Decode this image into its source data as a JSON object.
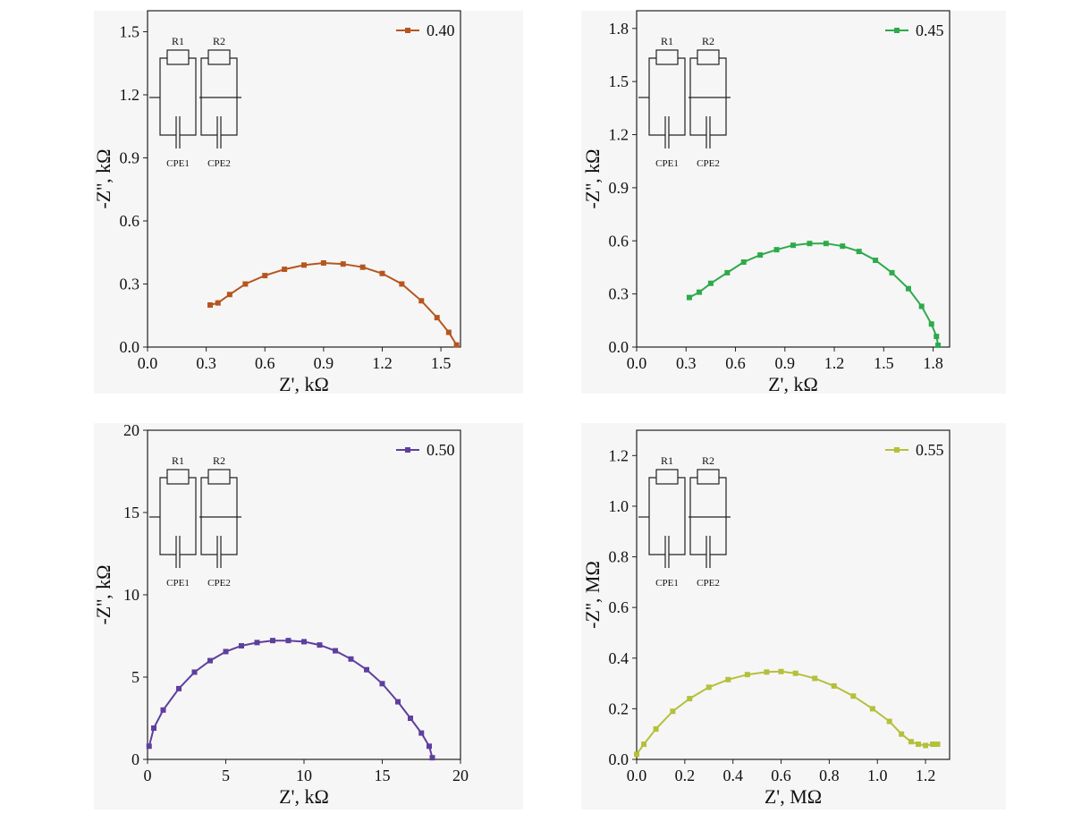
{
  "chart_data": [
    {
      "type": "scatter",
      "xlabel": "Z', kΩ",
      "ylabel": "-Z'', kΩ",
      "xlim": [
        0,
        1.6
      ],
      "ylim": [
        0,
        1.6
      ],
      "xticks": [
        "0.0",
        "0.3",
        "0.6",
        "0.9",
        "1.2",
        "1.5"
      ],
      "yticks": [
        "0.0",
        "0.3",
        "0.6",
        "0.9",
        "1.2",
        "1.5"
      ],
      "legend": "top-right",
      "circuit_labels": {
        "r1": "R1",
        "r2": "R2",
        "cpe1": "CPE1",
        "cpe2": "CPE2"
      },
      "series": [
        {
          "name": "0.40",
          "color": "#b5561f",
          "x": [
            0.32,
            0.36,
            0.42,
            0.5,
            0.6,
            0.7,
            0.8,
            0.9,
            1.0,
            1.1,
            1.2,
            1.3,
            1.4,
            1.48,
            1.54,
            1.58
          ],
          "y": [
            0.2,
            0.21,
            0.25,
            0.3,
            0.34,
            0.37,
            0.39,
            0.4,
            0.395,
            0.38,
            0.35,
            0.3,
            0.22,
            0.14,
            0.07,
            0.01
          ]
        }
      ]
    },
    {
      "type": "scatter",
      "xlabel": "Z', kΩ",
      "ylabel": "-Z'', kΩ",
      "xlim": [
        0,
        1.9
      ],
      "ylim": [
        0,
        1.9
      ],
      "xticks": [
        "0.0",
        "0.3",
        "0.6",
        "0.9",
        "1.2",
        "1.5",
        "1.8"
      ],
      "yticks": [
        "0.0",
        "0.3",
        "0.6",
        "0.9",
        "1.2",
        "1.5",
        "1.8"
      ],
      "legend": "top-right",
      "circuit_labels": {
        "r1": "R1",
        "r2": "R2",
        "cpe1": "CPE1",
        "cpe2": "CPE2"
      },
      "series": [
        {
          "name": "0.45",
          "color": "#2eaa4a",
          "x": [
            0.32,
            0.38,
            0.45,
            0.55,
            0.65,
            0.75,
            0.85,
            0.95,
            1.05,
            1.15,
            1.25,
            1.35,
            1.45,
            1.55,
            1.65,
            1.73,
            1.79,
            1.82,
            1.83
          ],
          "y": [
            0.28,
            0.31,
            0.36,
            0.42,
            0.48,
            0.52,
            0.55,
            0.575,
            0.585,
            0.585,
            0.57,
            0.54,
            0.49,
            0.42,
            0.33,
            0.23,
            0.13,
            0.06,
            0.01
          ]
        }
      ]
    },
    {
      "type": "scatter",
      "xlabel": "Z', kΩ",
      "ylabel": "-Z'', kΩ",
      "xlim": [
        0,
        20
      ],
      "ylim": [
        0,
        20
      ],
      "xticks": [
        "0",
        "5",
        "10",
        "15",
        "20"
      ],
      "yticks": [
        "0",
        "5",
        "10",
        "15",
        "20"
      ],
      "legend": "top-right",
      "circuit_labels": {
        "r1": "R1",
        "r2": "R2",
        "cpe1": "CPE1",
        "cpe2": "CPE2"
      },
      "series": [
        {
          "name": "0.50",
          "color": "#5e3f9e",
          "x": [
            0.1,
            0.4,
            1.0,
            2.0,
            3.0,
            4.0,
            5.0,
            6.0,
            7.0,
            8.0,
            9.0,
            10.0,
            11.0,
            12.0,
            13.0,
            14.0,
            15.0,
            16.0,
            16.8,
            17.5,
            18.0,
            18.2
          ],
          "y": [
            0.8,
            1.9,
            3.0,
            4.3,
            5.3,
            6.0,
            6.55,
            6.9,
            7.1,
            7.22,
            7.22,
            7.15,
            6.95,
            6.6,
            6.1,
            5.45,
            4.6,
            3.5,
            2.5,
            1.6,
            0.8,
            0.1
          ]
        }
      ]
    },
    {
      "type": "scatter",
      "xlabel": "Z', MΩ",
      "ylabel": "-Z'', MΩ",
      "xlim": [
        0,
        1.3
      ],
      "ylim": [
        0,
        1.3
      ],
      "xticks": [
        "0.0",
        "0.2",
        "0.4",
        "0.6",
        "0.8",
        "1.0",
        "1.2"
      ],
      "yticks": [
        "0.0",
        "0.2",
        "0.4",
        "0.6",
        "0.8",
        "1.0",
        "1.2"
      ],
      "legend": "top-right",
      "circuit_labels": {
        "r1": "R1",
        "r2": "R2",
        "cpe1": "CPE1",
        "cpe2": "CPE2"
      },
      "series": [
        {
          "name": "0.55",
          "color": "#b5c03a",
          "x": [
            0.0,
            0.03,
            0.08,
            0.15,
            0.22,
            0.3,
            0.38,
            0.46,
            0.54,
            0.6,
            0.66,
            0.74,
            0.82,
            0.9,
            0.98,
            1.05,
            1.1,
            1.14,
            1.17,
            1.2,
            1.23,
            1.25
          ],
          "y": [
            0.02,
            0.06,
            0.12,
            0.19,
            0.24,
            0.285,
            0.315,
            0.335,
            0.345,
            0.347,
            0.34,
            0.32,
            0.29,
            0.25,
            0.2,
            0.15,
            0.1,
            0.07,
            0.06,
            0.055,
            0.06,
            0.06
          ]
        }
      ]
    }
  ]
}
